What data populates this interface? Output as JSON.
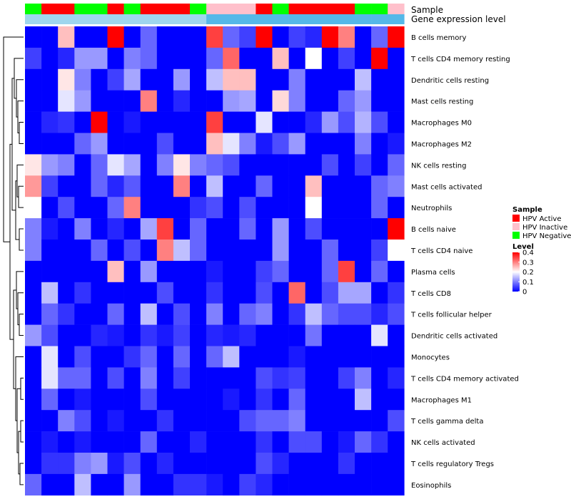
{
  "chart_data": {
    "type": "heatmap",
    "title": "",
    "annotation_tracks": [
      {
        "label": "Sample",
        "values": [
          "HPV Negative",
          "HPV Active",
          "HPV Active",
          "HPV Negative",
          "HPV Negative",
          "HPV Active",
          "HPV Negative",
          "HPV Active",
          "HPV Active",
          "HPV Active",
          "HPV Negative",
          "HPV Inactive",
          "HPV Inactive",
          "HPV Inactive",
          "HPV Active",
          "HPV Negative",
          "HPV Active",
          "HPV Active",
          "HPV Active",
          "HPV Active",
          "HPV Negative",
          "HPV Negative",
          "HPV Inactive"
        ]
      },
      {
        "label": "Gene expression level",
        "values": [
          "low",
          "low",
          "low",
          "low",
          "low",
          "low",
          "low",
          "low",
          "low",
          "low",
          "low",
          "high",
          "high",
          "high",
          "high",
          "high",
          "high",
          "high",
          "high",
          "high",
          "high",
          "high",
          "high"
        ]
      }
    ],
    "rows": [
      "B cells memory",
      "T cells CD4 memory resting",
      "Dendritic cells resting",
      "Mast cells resting",
      "Macrophages M0",
      "Macrophages M2",
      "NK cells resting",
      "Mast cells activated",
      "Neutrophils",
      "B cells naive",
      "T cells CD4 naive",
      "Plasma cells",
      "T cells CD8",
      "T cells follicular helper",
      "Dendritic cells activated",
      "Monocytes",
      "T cells CD4 memory activated",
      "Macrophages M1",
      "T cells gamma delta",
      "NK cells activated",
      "T cells regulatory  Tregs",
      "Eosinophils"
    ],
    "values": [
      [
        0,
        0,
        0.25,
        0,
        0,
        0.4,
        0,
        0.08,
        0,
        0,
        0,
        0.35,
        0.08,
        0.05,
        0.4,
        0,
        0.05,
        0.03,
        0.4,
        0.3,
        0,
        0.08,
        0.4
      ],
      [
        0.05,
        0,
        0.03,
        0.12,
        0.12,
        0,
        0.1,
        0.08,
        0,
        0,
        0,
        0.08,
        0.32,
        0,
        0,
        0.25,
        0,
        0.2,
        0,
        0.05,
        0,
        0.4,
        0
      ],
      [
        0,
        0,
        0.22,
        0.1,
        0,
        0.05,
        0.13,
        0,
        0,
        0.12,
        0,
        0.15,
        0.25,
        0.25,
        0,
        0,
        0.1,
        0,
        0,
        0,
        0.15,
        0,
        0
      ],
      [
        0,
        0,
        0.18,
        0.12,
        0,
        0,
        0,
        0.3,
        0,
        0.03,
        0,
        0,
        0.12,
        0.13,
        0,
        0.23,
        0.1,
        0,
        0,
        0.08,
        0.12,
        0,
        0
      ],
      [
        0,
        0.03,
        0.04,
        0,
        0.4,
        0,
        0.02,
        0,
        0,
        0,
        0,
        0.35,
        0,
        0,
        0.18,
        0,
        0,
        0.03,
        0.12,
        0.06,
        0.14,
        0.06,
        0
      ],
      [
        0,
        0,
        0,
        0.08,
        0.12,
        0,
        0,
        0,
        0.06,
        0,
        0,
        0.25,
        0.18,
        0.1,
        0.02,
        0.06,
        0.12,
        0,
        0,
        0,
        0.1,
        0,
        0.02
      ],
      [
        0.22,
        0.12,
        0.1,
        0,
        0.08,
        0.18,
        0.13,
        0,
        0.1,
        0.22,
        0.1,
        0.08,
        0.06,
        0,
        0,
        0,
        0,
        0,
        0.06,
        0,
        0.05,
        0,
        0.08
      ],
      [
        0.28,
        0.05,
        0,
        0,
        0.08,
        0.03,
        0.07,
        0,
        0,
        0.3,
        0,
        0.15,
        0,
        0,
        0.08,
        0,
        0,
        0.25,
        0,
        0,
        0,
        0.08,
        0.1
      ],
      [
        0.2,
        0,
        0.06,
        0,
        0,
        0.08,
        0.3,
        0,
        0,
        0,
        0.04,
        0.06,
        0,
        0.06,
        0,
        0,
        0,
        0.2,
        0,
        0,
        0,
        0.08,
        0
      ],
      [
        0.1,
        0.02,
        0,
        0.1,
        0,
        0.03,
        0,
        0.13,
        0.35,
        0,
        0.08,
        0,
        0,
        0.08,
        0,
        0.12,
        0,
        0.06,
        0,
        0,
        0,
        0,
        0.4
      ],
      [
        0.1,
        0,
        0,
        0,
        0.08,
        0,
        0.06,
        0,
        0.3,
        0.15,
        0.08,
        0,
        0,
        0,
        0,
        0.12,
        0,
        0,
        0.08,
        0,
        0,
        0.05,
        0.2
      ],
      [
        0,
        0,
        0,
        0,
        0,
        0.25,
        0,
        0.12,
        0,
        0,
        0,
        0.02,
        0,
        0,
        0.05,
        0.08,
        0,
        0,
        0.08,
        0.35,
        0,
        0.08,
        0
      ],
      [
        0,
        0.15,
        0,
        0.04,
        0,
        0,
        0,
        0,
        0.06,
        0,
        0,
        0.04,
        0,
        0,
        0.06,
        0,
        0.32,
        0,
        0.06,
        0.13,
        0.13,
        0,
        0.04
      ],
      [
        0,
        0.08,
        0.04,
        0,
        0,
        0.08,
        0,
        0.15,
        0,
        0.06,
        0,
        0.1,
        0,
        0.08,
        0.1,
        0,
        0.04,
        0.15,
        0.08,
        0.06,
        0.06,
        0.03,
        0.06
      ],
      [
        0.12,
        0.06,
        0,
        0,
        0.03,
        0.02,
        0,
        0.04,
        0.02,
        0.05,
        0,
        0.03,
        0.02,
        0.03,
        0,
        0,
        0,
        0.09,
        0,
        0,
        0,
        0.18,
        0
      ],
      [
        0,
        0.18,
        0,
        0.06,
        0,
        0,
        0.04,
        0.08,
        0,
        0.08,
        0,
        0.08,
        0.15,
        0,
        0,
        0,
        0.02,
        0,
        0,
        0,
        0,
        0,
        0
      ],
      [
        0,
        0.18,
        0.08,
        0.08,
        0,
        0.06,
        0,
        0.1,
        0,
        0.05,
        0,
        0,
        0,
        0,
        0.06,
        0.04,
        0.05,
        0,
        0,
        0.05,
        0.1,
        0,
        0.03
      ],
      [
        0,
        0.08,
        0,
        0.02,
        0,
        0,
        0,
        0.06,
        0,
        0,
        0,
        0,
        0.02,
        0,
        0.04,
        0,
        0.08,
        0,
        0,
        0,
        0.15,
        0,
        0
      ],
      [
        0,
        0,
        0.1,
        0.06,
        0,
        0.02,
        0,
        0,
        0.04,
        0,
        0,
        0,
        0,
        0.06,
        0.08,
        0.08,
        0.1,
        0,
        0,
        0,
        0,
        0,
        0.06
      ],
      [
        0,
        0.02,
        0,
        0.02,
        0,
        0,
        0,
        0.08,
        0,
        0,
        0.03,
        0,
        0,
        0,
        0.04,
        0,
        0.06,
        0.06,
        0,
        0.02,
        0.08,
        0.04,
        0
      ],
      [
        0,
        0.04,
        0.04,
        0.1,
        0.12,
        0.02,
        0.06,
        0,
        0.03,
        0,
        0,
        0,
        0,
        0,
        0.06,
        0.03,
        0,
        0,
        0,
        0.04,
        0,
        0,
        0
      ],
      [
        0.08,
        0,
        0,
        0.15,
        0,
        0,
        0.12,
        0,
        0,
        0.04,
        0.04,
        0.02,
        0,
        0.05,
        0.03,
        0,
        0,
        0,
        0,
        0,
        0,
        0,
        0
      ]
    ],
    "color_scale": {
      "min": 0,
      "mid": 0.2,
      "max": 0.4,
      "low_color": "#0000ff",
      "mid_color": "#ffffff",
      "high_color": "#ff0000"
    },
    "legend": {
      "sample_title": "Sample",
      "sample_items": [
        {
          "label": "HPV Active",
          "color": "#ff0000"
        },
        {
          "label": "HPV Inactive",
          "color": "#ffc0cb"
        },
        {
          "label": "HPV Negative",
          "color": "#00ff00"
        }
      ],
      "level_title": "Level",
      "level_ticks": [
        "0.4",
        "0.3",
        "0.2",
        "0.1",
        "0"
      ],
      "level_tick_values": [
        0.4,
        0.3,
        0.2,
        0.1,
        0
      ],
      "placement": "right"
    },
    "gene_expression_colors": {
      "low": "#9fd6ee",
      "high": "#55b8e8"
    }
  }
}
